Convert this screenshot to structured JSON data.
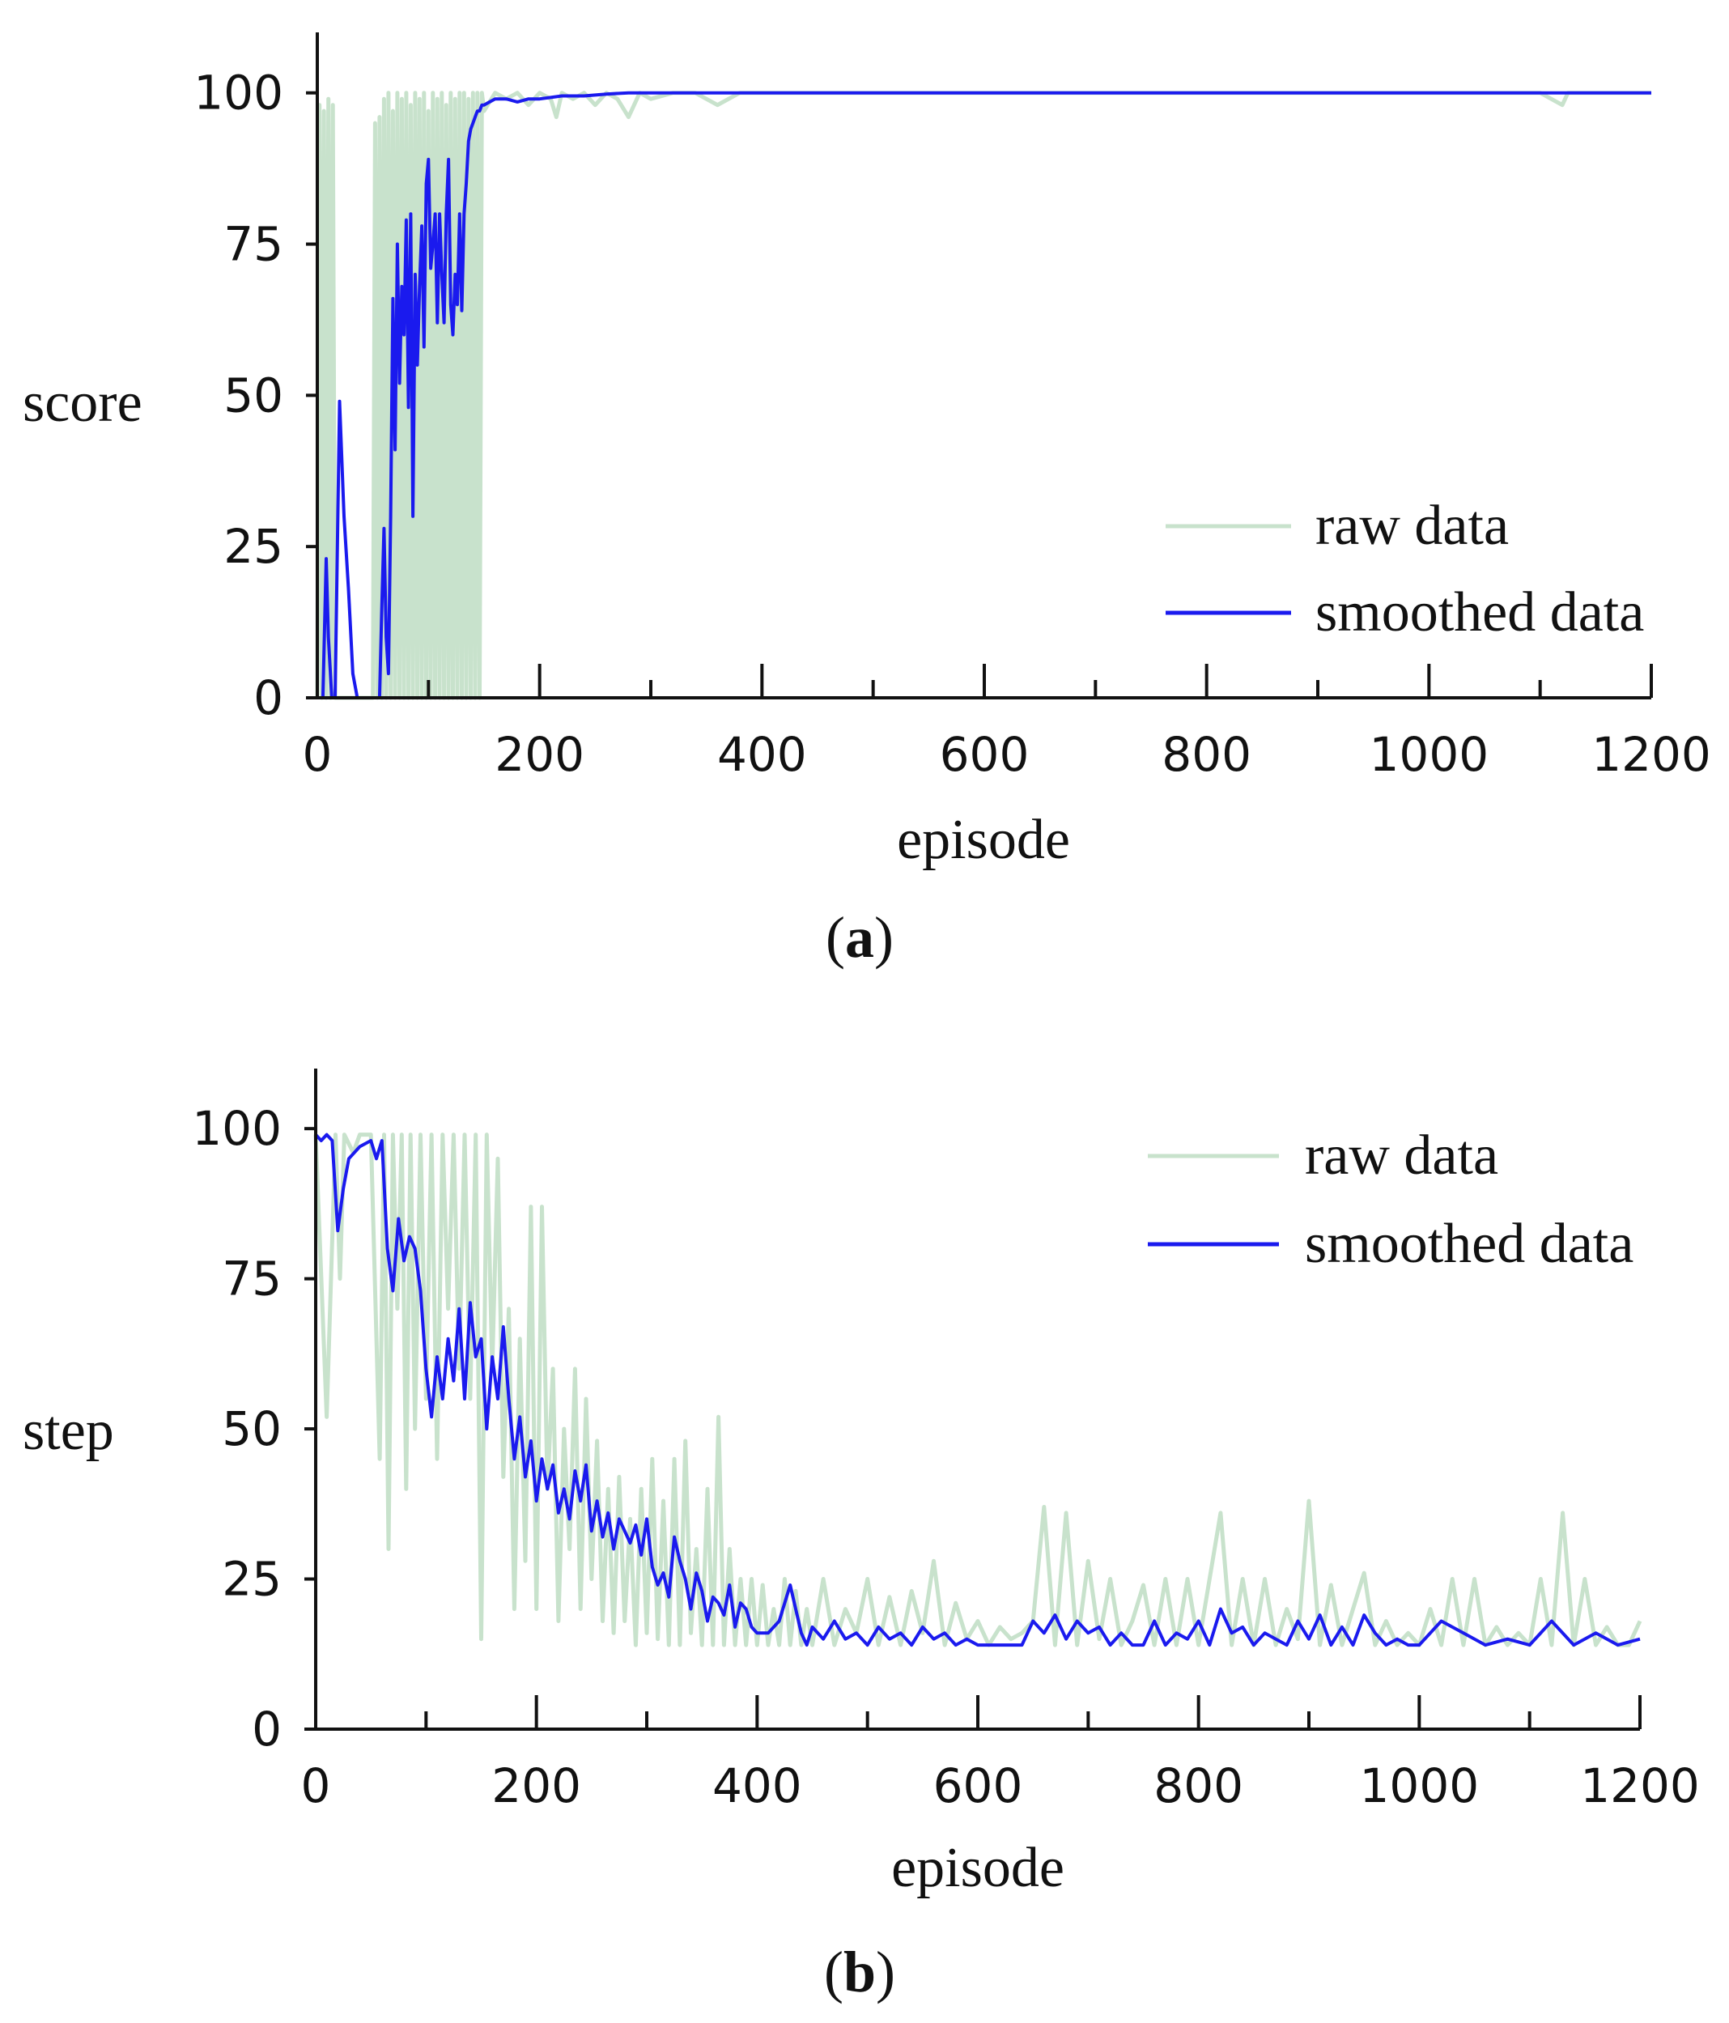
{
  "chart_data": [
    {
      "type": "line",
      "panel": "a",
      "caption_open": "(",
      "caption_letter": "a",
      "caption_close": ")",
      "xlabel": "episode",
      "ylabel": "score",
      "xlim": [
        0,
        1200
      ],
      "ylim": [
        0,
        110
      ],
      "xticks": [
        0,
        200,
        400,
        600,
        800,
        1000,
        1200
      ],
      "yticks": [
        0,
        25,
        50,
        75,
        100
      ],
      "grid": false,
      "legend_position": "bottom-right",
      "series": [
        {
          "name": "raw data",
          "color": "#c8e2cc",
          "x": [
            0,
            2,
            4,
            6,
            8,
            10,
            12,
            14,
            16,
            18,
            20,
            22,
            24,
            26,
            28,
            30,
            32,
            34,
            36,
            38,
            40,
            42,
            44,
            46,
            48,
            50,
            52,
            54,
            56,
            58,
            60,
            62,
            64,
            66,
            68,
            70,
            72,
            74,
            76,
            78,
            80,
            82,
            84,
            86,
            88,
            90,
            92,
            94,
            96,
            98,
            100,
            102,
            104,
            106,
            108,
            110,
            112,
            114,
            116,
            118,
            120,
            122,
            124,
            126,
            128,
            130,
            132,
            134,
            136,
            138,
            140,
            142,
            144,
            146,
            148,
            150,
            160,
            170,
            180,
            190,
            200,
            210,
            215,
            220,
            230,
            240,
            250,
            260,
            270,
            280,
            290,
            300,
            320,
            340,
            360,
            380,
            400,
            450,
            500,
            550,
            600,
            650,
            700,
            750,
            800,
            850,
            900,
            950,
            1000,
            1050,
            1100,
            1120,
            1125,
            1130,
            1150,
            1200
          ],
          "y": [
            0,
            98,
            0,
            97,
            0,
            99,
            0,
            98,
            0,
            0,
            0,
            0,
            0,
            0,
            0,
            0,
            0,
            0,
            0,
            0,
            0,
            0,
            0,
            0,
            0,
            0,
            95,
            0,
            96,
            0,
            99,
            0,
            100,
            0,
            97,
            0,
            100,
            0,
            99,
            0,
            100,
            0,
            98,
            0,
            100,
            0,
            99,
            0,
            100,
            0,
            97,
            0,
            100,
            0,
            99,
            0,
            100,
            0,
            98,
            0,
            100,
            0,
            99,
            0,
            100,
            0,
            100,
            0,
            99,
            0,
            100,
            0,
            100,
            0,
            100,
            97,
            100,
            99,
            100,
            98,
            100,
            99,
            96,
            100,
            99,
            100,
            98,
            100,
            99,
            96,
            100,
            99,
            100,
            100,
            98,
            100,
            100,
            100,
            100,
            100,
            100,
            100,
            100,
            100,
            100,
            100,
            100,
            100,
            100,
            100,
            100,
            98,
            100,
            100,
            100,
            100
          ]
        },
        {
          "name": "smoothed data",
          "color": "#1a1aee",
          "x": [
            0,
            5,
            8,
            10,
            13,
            16,
            20,
            24,
            28,
            32,
            36,
            40,
            45,
            50,
            53,
            56,
            58,
            60,
            62,
            64,
            66,
            68,
            70,
            72,
            74,
            76,
            78,
            80,
            82,
            84,
            86,
            88,
            90,
            92,
            94,
            96,
            98,
            100,
            102,
            104,
            106,
            108,
            110,
            112,
            114,
            116,
            118,
            120,
            122,
            124,
            126,
            128,
            130,
            132,
            134,
            136,
            138,
            140,
            142,
            144,
            146,
            148,
            150,
            155,
            160,
            170,
            180,
            190,
            200,
            220,
            240,
            260,
            280,
            300,
            320,
            350,
            400,
            500,
            600,
            700,
            800,
            900,
            1000,
            1100,
            1200
          ],
          "y": [
            0,
            0,
            23,
            10,
            0,
            0,
            49,
            30,
            18,
            4,
            0,
            0,
            0,
            0,
            0,
            0,
            15,
            28,
            10,
            4,
            30,
            66,
            41,
            75,
            52,
            68,
            60,
            79,
            48,
            80,
            30,
            70,
            55,
            68,
            78,
            58,
            85,
            89,
            71,
            75,
            80,
            62,
            80,
            70,
            62,
            80,
            89,
            65,
            60,
            70,
            65,
            80,
            64,
            80,
            85,
            92,
            94,
            95,
            96,
            97,
            97,
            98,
            98,
            98.5,
            99,
            99,
            98.5,
            99,
            99,
            99.5,
            99.5,
            99.8,
            100,
            100,
            100,
            100,
            100,
            100,
            100,
            100,
            100,
            100,
            100,
            100,
            100
          ]
        }
      ]
    },
    {
      "type": "line",
      "panel": "b",
      "caption_open": "(",
      "caption_letter": "b",
      "caption_close": ")",
      "xlabel": "episode",
      "ylabel": "step",
      "xlim": [
        0,
        1200
      ],
      "ylim": [
        0,
        110
      ],
      "xticks": [
        0,
        200,
        400,
        600,
        800,
        1000,
        1200
      ],
      "yticks": [
        0,
        25,
        50,
        75,
        100
      ],
      "grid": false,
      "legend_position": "top-right",
      "series": [
        {
          "name": "raw data",
          "color": "#c8e2cc",
          "x": [
            0,
            10,
            18,
            22,
            26,
            34,
            40,
            50,
            58,
            62,
            66,
            70,
            74,
            78,
            82,
            86,
            90,
            95,
            100,
            105,
            110,
            115,
            120,
            125,
            130,
            135,
            140,
            145,
            150,
            155,
            160,
            165,
            170,
            175,
            180,
            185,
            190,
            195,
            200,
            205,
            210,
            215,
            220,
            225,
            230,
            235,
            240,
            245,
            250,
            255,
            260,
            265,
            270,
            275,
            280,
            285,
            290,
            295,
            300,
            305,
            310,
            315,
            320,
            325,
            330,
            335,
            340,
            345,
            350,
            355,
            360,
            365,
            370,
            375,
            380,
            385,
            390,
            395,
            400,
            405,
            410,
            415,
            420,
            425,
            430,
            435,
            440,
            445,
            450,
            460,
            470,
            480,
            490,
            500,
            510,
            520,
            530,
            540,
            550,
            560,
            570,
            580,
            590,
            600,
            610,
            620,
            630,
            640,
            650,
            660,
            670,
            680,
            690,
            700,
            710,
            720,
            730,
            740,
            750,
            760,
            770,
            780,
            790,
            800,
            810,
            820,
            830,
            840,
            850,
            860,
            870,
            880,
            890,
            900,
            910,
            920,
            930,
            940,
            950,
            960,
            970,
            980,
            990,
            1000,
            1010,
            1020,
            1030,
            1040,
            1050,
            1060,
            1070,
            1080,
            1090,
            1100,
            1110,
            1120,
            1130,
            1140,
            1150,
            1160,
            1170,
            1180,
            1190,
            1200
          ],
          "y": [
            99,
            52,
            99,
            75,
            99,
            96,
            99,
            99,
            45,
            99,
            30,
            99,
            70,
            99,
            40,
            99,
            50,
            99,
            55,
            99,
            45,
            99,
            70,
            99,
            60,
            99,
            55,
            99,
            15,
            99,
            60,
            95,
            42,
            70,
            20,
            65,
            28,
            87,
            20,
            87,
            40,
            60,
            18,
            50,
            30,
            60,
            20,
            55,
            25,
            48,
            18,
            40,
            16,
            42,
            18,
            35,
            14,
            40,
            16,
            45,
            15,
            38,
            14,
            45,
            14,
            48,
            16,
            30,
            14,
            40,
            14,
            52,
            14,
            30,
            14,
            25,
            14,
            25,
            14,
            24,
            14,
            20,
            14,
            25,
            14,
            23,
            14,
            20,
            14,
            25,
            14,
            20,
            16,
            25,
            14,
            22,
            14,
            23,
            16,
            28,
            14,
            21,
            15,
            18,
            14,
            17,
            15,
            16,
            18,
            37,
            14,
            36,
            14,
            28,
            15,
            25,
            14,
            18,
            24,
            14,
            25,
            14,
            25,
            14,
            25,
            36,
            14,
            25,
            14,
            25,
            14,
            20,
            15,
            38,
            14,
            24,
            14,
            20,
            26,
            14,
            18,
            14,
            16,
            14,
            20,
            14,
            25,
            14,
            25,
            14,
            17,
            14,
            16,
            14,
            25,
            14,
            36,
            14,
            25,
            14,
            17,
            14,
            14,
            18
          ]
        },
        {
          "name": "smoothed data",
          "color": "#1a1aee",
          "x": [
            0,
            5,
            10,
            15,
            20,
            25,
            30,
            40,
            50,
            55,
            60,
            65,
            70,
            75,
            80,
            85,
            90,
            95,
            100,
            105,
            110,
            115,
            120,
            125,
            130,
            135,
            140,
            145,
            150,
            155,
            160,
            165,
            170,
            175,
            180,
            185,
            190,
            195,
            200,
            205,
            210,
            215,
            220,
            225,
            230,
            235,
            240,
            245,
            250,
            255,
            260,
            265,
            270,
            275,
            280,
            285,
            290,
            295,
            300,
            305,
            310,
            315,
            320,
            325,
            330,
            335,
            340,
            345,
            350,
            355,
            360,
            365,
            370,
            375,
            380,
            385,
            390,
            395,
            400,
            410,
            420,
            430,
            435,
            440,
            445,
            450,
            460,
            470,
            480,
            490,
            500,
            510,
            520,
            530,
            540,
            550,
            560,
            570,
            580,
            590,
            600,
            620,
            640,
            650,
            660,
            670,
            680,
            690,
            700,
            710,
            720,
            730,
            740,
            750,
            760,
            770,
            780,
            790,
            800,
            810,
            820,
            830,
            840,
            850,
            860,
            870,
            880,
            890,
            900,
            910,
            920,
            930,
            940,
            950,
            960,
            970,
            980,
            990,
            1000,
            1020,
            1040,
            1060,
            1080,
            1100,
            1120,
            1140,
            1160,
            1180,
            1200
          ],
          "y": [
            99,
            98,
            99,
            98,
            83,
            90,
            95,
            97,
            98,
            95,
            98,
            80,
            73,
            85,
            78,
            82,
            80,
            73,
            60,
            52,
            62,
            55,
            65,
            58,
            70,
            55,
            71,
            62,
            65,
            50,
            62,
            55,
            67,
            55,
            45,
            52,
            42,
            48,
            38,
            45,
            40,
            44,
            36,
            40,
            35,
            43,
            38,
            44,
            33,
            38,
            32,
            36,
            30,
            35,
            33,
            31,
            34,
            29,
            35,
            27,
            24,
            26,
            22,
            32,
            28,
            25,
            20,
            26,
            23,
            18,
            22,
            21,
            19,
            24,
            17,
            21,
            20,
            17,
            16,
            16,
            18,
            24,
            20,
            16,
            14,
            17,
            15,
            18,
            15,
            16,
            14,
            17,
            15,
            16,
            14,
            17,
            15,
            16,
            14,
            15,
            14,
            14,
            14,
            18,
            16,
            19,
            15,
            18,
            16,
            17,
            14,
            16,
            14,
            14,
            18,
            14,
            16,
            15,
            18,
            14,
            20,
            16,
            17,
            14,
            16,
            15,
            14,
            18,
            15,
            19,
            14,
            17,
            14,
            19,
            16,
            14,
            15,
            14,
            14,
            18,
            16,
            14,
            15,
            14,
            18,
            14,
            16,
            14,
            15
          ]
        }
      ]
    }
  ]
}
